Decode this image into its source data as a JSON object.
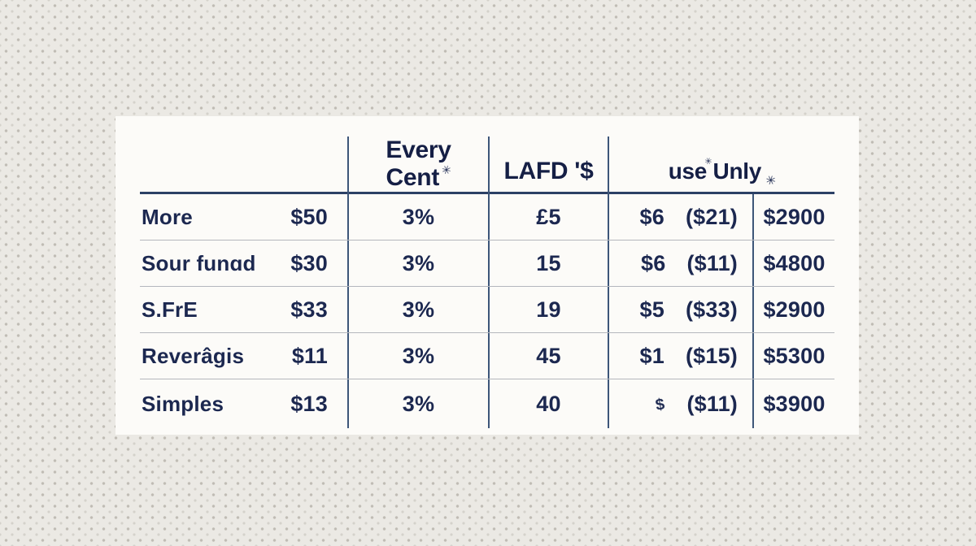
{
  "chart_data": {
    "type": "table",
    "column_headers": [
      "",
      "",
      "Every Cent",
      "LAFD '$",
      "use Unly",
      ""
    ],
    "header": {
      "every_line1": "Every",
      "every_line2": "Cent",
      "lafd": "LAFD '$",
      "use_only": "use Unly"
    },
    "rows": [
      {
        "label": "More",
        "amount": "$50",
        "pct": "3%",
        "lafd": "£5",
        "fee": "$6",
        "fee_note": "($21)",
        "total": "$2900"
      },
      {
        "label": "Sour funɑd",
        "amount": "$30",
        "pct": "3%",
        "lafd": "15",
        "fee": "$6",
        "fee_note": "($11)",
        "total": "$4800"
      },
      {
        "label": "S.FrE",
        "amount": "$33",
        "pct": "3%",
        "lafd": "19",
        "fee": "$5",
        "fee_note": "($33)",
        "total": "$2900"
      },
      {
        "label": "Reverâgis",
        "amount": "$11",
        "pct": "3%",
        "lafd": "45",
        "fee": "$1",
        "fee_note": "($15)",
        "total": "$5300"
      },
      {
        "label": "Simples",
        "amount": "$13",
        "pct": "3%",
        "lafd": "40",
        "fee": "$",
        "fee_note": "($11)",
        "total": "$3900"
      }
    ]
  },
  "decorations": {
    "ink_blot": "✳"
  },
  "colors": {
    "background": "#ebe9e4",
    "background_dots": "#948e83",
    "card": "#fcfbf8",
    "text": "#1c2850",
    "header_rule": "#2b4066",
    "column_rule": "#3d5679",
    "row_rule": "#b4b7bd"
  }
}
